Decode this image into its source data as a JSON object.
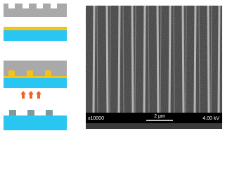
{
  "sem_info": {
    "magnification": "x10000",
    "scale_bar": "2 μm",
    "voltage": "4.00 kV"
  }
}
